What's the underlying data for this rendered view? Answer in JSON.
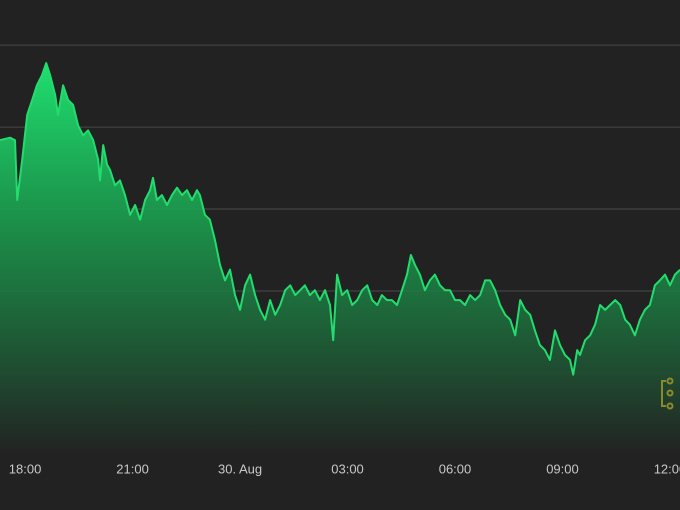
{
  "chart_data": {
    "type": "area",
    "color": "#22dd6e",
    "grid": true,
    "xlim": [
      -0.7,
      18.28
    ],
    "xticks": [
      {
        "value": 0,
        "label": "18:00"
      },
      {
        "value": 3,
        "label": "21:00"
      },
      {
        "value": 6,
        "label": "30. Aug"
      },
      {
        "value": 9,
        "label": "03:00"
      },
      {
        "value": 12,
        "label": "06:00"
      },
      {
        "value": 15,
        "label": "09:00"
      },
      {
        "value": 18,
        "label": "12:00"
      }
    ],
    "ylim": [
      0,
      5.55
    ],
    "yticks": [
      1,
      2,
      3,
      4,
      5
    ],
    "x": [
      -0.7,
      -0.42,
      -0.28,
      -0.22,
      -0.08,
      0.06,
      0.2,
      0.33,
      0.47,
      0.59,
      0.7,
      0.84,
      0.92,
      1.06,
      1.2,
      1.34,
      1.48,
      1.62,
      1.76,
      1.9,
      2.04,
      2.09,
      2.18,
      2.29,
      2.37,
      2.51,
      2.65,
      2.79,
      2.93,
      3.07,
      3.21,
      3.35,
      3.49,
      3.57,
      3.68,
      3.82,
      3.96,
      4.1,
      4.24,
      4.38,
      4.52,
      4.66,
      4.8,
      4.88,
      5.02,
      5.16,
      5.3,
      5.44,
      5.58,
      5.72,
      5.86,
      6.0,
      6.14,
      6.28,
      6.42,
      6.56,
      6.7,
      6.84,
      6.98,
      7.12,
      7.26,
      7.4,
      7.54,
      7.68,
      7.81,
      7.95,
      8.09,
      8.23,
      8.37,
      8.51,
      8.6,
      8.71,
      8.85,
      8.99,
      9.13,
      9.27,
      9.41,
      9.55,
      9.69,
      9.83,
      9.96,
      10.1,
      10.24,
      10.38,
      10.52,
      10.66,
      10.77,
      10.88,
      11.02,
      11.16,
      11.3,
      11.44,
      11.58,
      11.72,
      11.86,
      12.0,
      12.14,
      12.28,
      12.42,
      12.56,
      12.7,
      12.84,
      12.98,
      13.12,
      13.26,
      13.4,
      13.54,
      13.68,
      13.82,
      13.96,
      14.1,
      14.23,
      14.37,
      14.51,
      14.65,
      14.79,
      14.93,
      15.07,
      15.21,
      15.3,
      15.41,
      15.49,
      15.63,
      15.77,
      15.91,
      16.05,
      16.19,
      16.33,
      16.47,
      16.61,
      16.75,
      16.88,
      17.02,
      17.16,
      17.3,
      17.44,
      17.58,
      17.72,
      17.86,
      18.0,
      18.14,
      18.28
    ],
    "values": [
      3.84,
      3.87,
      3.84,
      3.11,
      3.6,
      4.15,
      4.33,
      4.51,
      4.63,
      4.78,
      4.63,
      4.39,
      4.15,
      4.51,
      4.33,
      4.27,
      4.02,
      3.9,
      3.96,
      3.84,
      3.6,
      3.35,
      3.78,
      3.54,
      3.48,
      3.29,
      3.35,
      3.17,
      2.93,
      3.05,
      2.87,
      3.11,
      3.23,
      3.38,
      3.11,
      3.17,
      3.05,
      3.17,
      3.26,
      3.17,
      3.23,
      3.11,
      3.23,
      3.17,
      2.93,
      2.87,
      2.62,
      2.32,
      2.13,
      2.26,
      1.95,
      1.77,
      2.07,
      2.2,
      1.95,
      1.77,
      1.65,
      1.89,
      1.71,
      1.83,
      2.01,
      2.07,
      1.95,
      2.01,
      2.07,
      1.95,
      2.01,
      1.89,
      2.01,
      1.83,
      1.4,
      2.2,
      1.95,
      2.01,
      1.83,
      1.89,
      2.01,
      2.07,
      1.89,
      1.83,
      1.95,
      1.89,
      1.89,
      1.83,
      2.01,
      2.2,
      2.44,
      2.32,
      2.2,
      2.01,
      2.13,
      2.2,
      2.07,
      2.01,
      2.01,
      1.89,
      1.89,
      1.83,
      1.95,
      1.89,
      1.95,
      2.13,
      2.13,
      2.01,
      1.83,
      1.71,
      1.65,
      1.46,
      1.89,
      1.77,
      1.71,
      1.52,
      1.34,
      1.28,
      1.16,
      1.52,
      1.34,
      1.22,
      1.16,
      0.98,
      1.28,
      1.22,
      1.4,
      1.46,
      1.59,
      1.83,
      1.77,
      1.83,
      1.89,
      1.83,
      1.65,
      1.59,
      1.46,
      1.65,
      1.77,
      1.83,
      2.07,
      2.13,
      2.2,
      2.07,
      2.2,
      2.26
    ]
  }
}
